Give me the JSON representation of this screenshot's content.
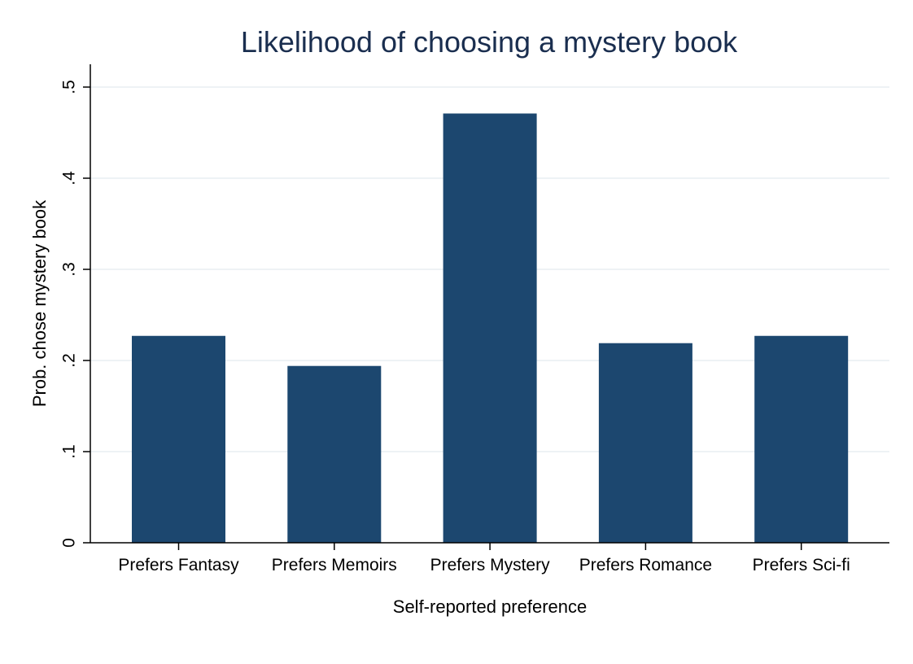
{
  "chart_data": {
    "type": "bar",
    "title": "Likelihood of choosing a mystery book",
    "xlabel": "Self-reported preference",
    "ylabel": "Prob. chose mystery book",
    "categories": [
      "Prefers Fantasy",
      "Prefers Memoirs",
      "Prefers Mystery",
      "Prefers Romance",
      "Prefers Sci-fi"
    ],
    "values": [
      0.227,
      0.194,
      0.471,
      0.219,
      0.227
    ],
    "ylim": [
      0,
      0.525
    ],
    "yticks": [
      0,
      0.1,
      0.2,
      0.3,
      0.4,
      0.5
    ],
    "ytick_labels": [
      "0",
      ".1",
      ".2",
      ".3",
      ".4",
      ".5"
    ],
    "grid": true,
    "legend": "none",
    "bar_color": "#1c476f",
    "title_color": "#1a2e4f"
  }
}
